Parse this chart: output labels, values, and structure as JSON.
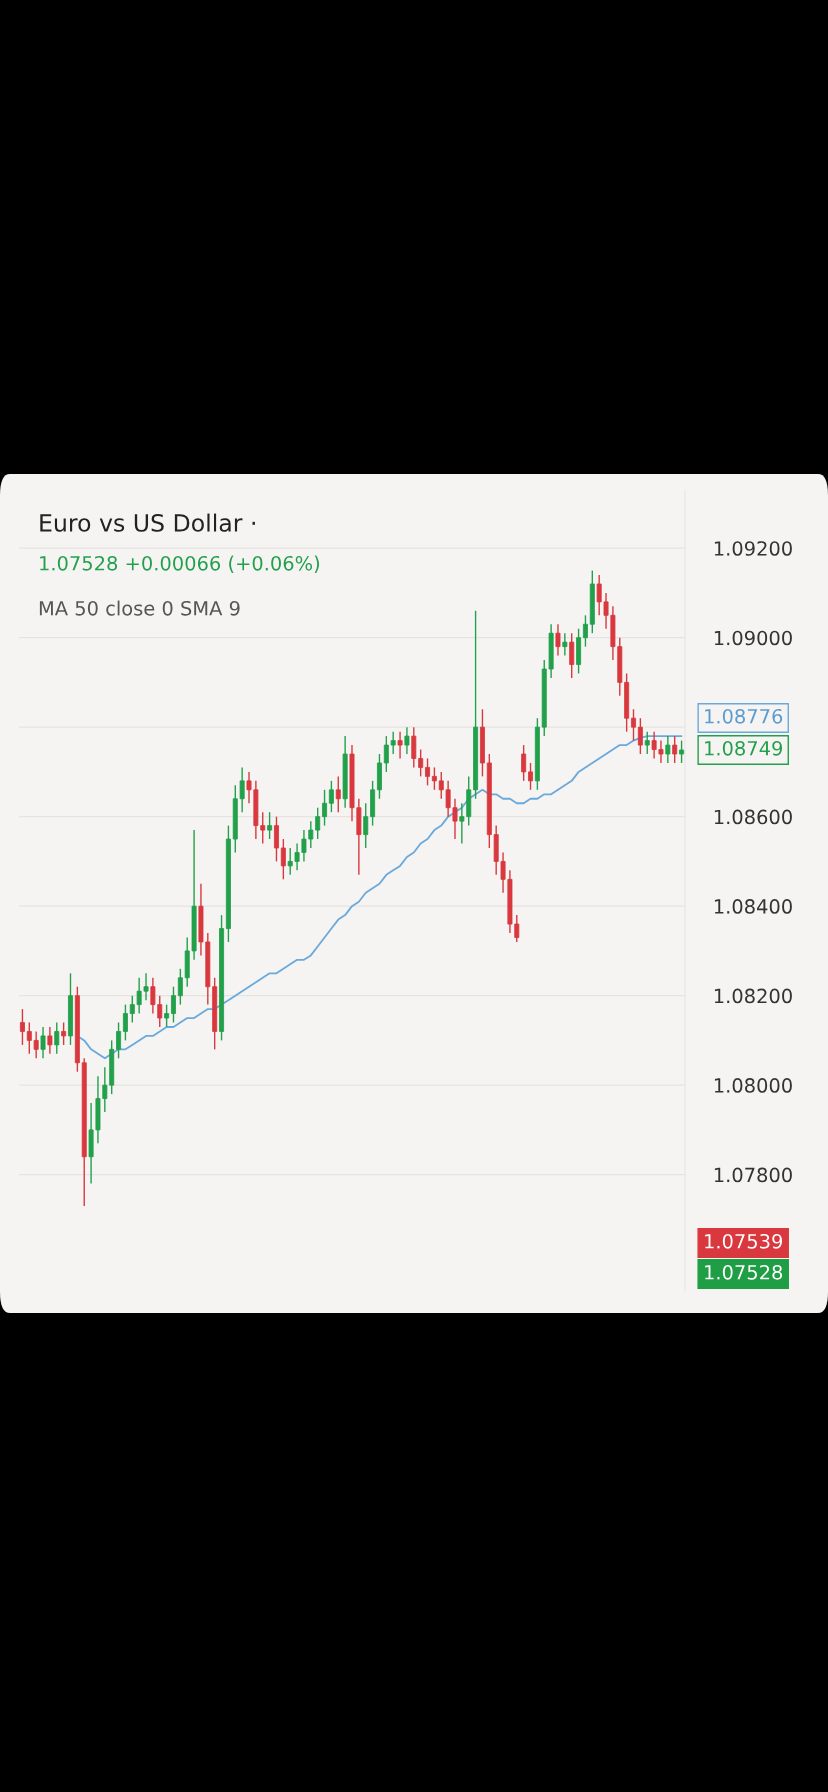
{
  "chart_data": {
    "type": "candlestick",
    "title": "Euro vs US Dollar ·",
    "subtitle": "1.07528 +0.00066 (+0.06%)",
    "annotations": [
      "MA 50 close 0 SMA 9",
      "1.08776",
      "1.08749",
      "1.07539",
      "1.07528"
    ],
    "categories": [
      null,
      null,
      null,
      null,
      null,
      null,
      null,
      null,
      null,
      null,
      null,
      null,
      null,
      null,
      null,
      null,
      null,
      null,
      null,
      null,
      null,
      null,
      null,
      null,
      null,
      null,
      null,
      null,
      null,
      null,
      null,
      null,
      null,
      null,
      null,
      null,
      null,
      null,
      null,
      null,
      null,
      null,
      null,
      null,
      null,
      null,
      null,
      null,
      null,
      null,
      null,
      null,
      null,
      null,
      null,
      null,
      null,
      null,
      null,
      null,
      null,
      null,
      null,
      null,
      null,
      null,
      null,
      null,
      null,
      null,
      null,
      null,
      null,
      null,
      null,
      null,
      null,
      null,
      null,
      null,
      null,
      null,
      null,
      null,
      null,
      null,
      null,
      null,
      null,
      null,
      null,
      null,
      null,
      null,
      null,
      null,
      null
    ],
    "ohlc": [
      [
        1.0814,
        1.0817,
        1.0809,
        1.0812
      ],
      [
        1.0812,
        1.0814,
        1.0807,
        1.081
      ],
      [
        1.081,
        1.0812,
        1.0806,
        1.0808
      ],
      [
        1.0808,
        1.0813,
        1.0806,
        1.0811
      ],
      [
        1.0811,
        1.0813,
        1.0807,
        1.0809
      ],
      [
        1.0809,
        1.0814,
        1.0807,
        1.0812
      ],
      [
        1.0812,
        1.0814,
        1.0809,
        1.0811
      ],
      [
        1.0811,
        1.0825,
        1.0809,
        1.082
      ],
      [
        1.082,
        1.0822,
        1.0803,
        1.0805
      ],
      [
        1.0805,
        1.0806,
        1.0773,
        1.0784
      ],
      [
        1.0784,
        1.0796,
        1.0778,
        1.079
      ],
      [
        1.079,
        1.0802,
        1.0787,
        1.0797
      ],
      [
        1.0797,
        1.0804,
        1.0794,
        1.08
      ],
      [
        1.08,
        1.081,
        1.0798,
        1.0808
      ],
      [
        1.0808,
        1.0814,
        1.0806,
        1.0812
      ],
      [
        1.0812,
        1.0818,
        1.081,
        1.0816
      ],
      [
        1.0816,
        1.082,
        1.0814,
        1.0818
      ],
      [
        1.0818,
        1.0824,
        1.0816,
        1.0821
      ],
      [
        1.0821,
        1.0825,
        1.0819,
        1.0822
      ],
      [
        1.0822,
        1.0824,
        1.0816,
        1.0818
      ],
      [
        1.0818,
        1.082,
        1.0813,
        1.0815
      ],
      [
        1.0815,
        1.0818,
        1.0813,
        1.0816
      ],
      [
        1.0816,
        1.0822,
        1.0814,
        1.082
      ],
      [
        1.082,
        1.0826,
        1.0818,
        1.0824
      ],
      [
        1.0824,
        1.0833,
        1.0822,
        1.083
      ],
      [
        1.083,
        1.0857,
        1.0828,
        1.084
      ],
      [
        1.084,
        1.0845,
        1.0829,
        1.0832
      ],
      [
        1.0832,
        1.0834,
        1.0818,
        1.0822
      ],
      [
        1.0822,
        1.0824,
        1.0808,
        1.0812
      ],
      [
        1.0812,
        1.0838,
        1.081,
        1.0835
      ],
      [
        1.0835,
        1.0858,
        1.0832,
        1.0855
      ],
      [
        1.0855,
        1.0867,
        1.0852,
        1.0864
      ],
      [
        1.0864,
        1.0871,
        1.0861,
        1.0868
      ],
      [
        1.0868,
        1.087,
        1.0863,
        1.0866
      ],
      [
        1.0866,
        1.0868,
        1.0855,
        1.0858
      ],
      [
        1.0858,
        1.0861,
        1.0854,
        1.0857
      ],
      [
        1.0857,
        1.0861,
        1.0855,
        1.0858
      ],
      [
        1.0858,
        1.086,
        1.085,
        1.0853
      ],
      [
        1.0853,
        1.0855,
        1.0846,
        1.0849
      ],
      [
        1.0849,
        1.0853,
        1.0847,
        1.085
      ],
      [
        1.085,
        1.0854,
        1.0848,
        1.0852
      ],
      [
        1.0852,
        1.0857,
        1.085,
        1.0855
      ],
      [
        1.0855,
        1.0859,
        1.0853,
        1.0857
      ],
      [
        1.0857,
        1.0862,
        1.0855,
        1.086
      ],
      [
        1.086,
        1.0866,
        1.0858,
        1.0863
      ],
      [
        1.0863,
        1.0868,
        1.0861,
        1.0866
      ],
      [
        1.0866,
        1.0869,
        1.0861,
        1.0864
      ],
      [
        1.0864,
        1.0878,
        1.0862,
        1.0874
      ],
      [
        1.0874,
        1.0876,
        1.0859,
        1.0862
      ],
      [
        1.0862,
        1.0864,
        1.0847,
        1.0856
      ],
      [
        1.0856,
        1.0863,
        1.0853,
        1.086
      ],
      [
        1.086,
        1.0868,
        1.0858,
        1.0866
      ],
      [
        1.0866,
        1.0874,
        1.0864,
        1.0872
      ],
      [
        1.0872,
        1.0878,
        1.087,
        1.0876
      ],
      [
        1.0876,
        1.0879,
        1.0874,
        1.0877
      ],
      [
        1.0877,
        1.0879,
        1.0873,
        1.0876
      ],
      [
        1.0876,
        1.088,
        1.0874,
        1.0878
      ],
      [
        1.0878,
        1.088,
        1.0871,
        1.0873
      ],
      [
        1.0873,
        1.0875,
        1.0869,
        1.0871
      ],
      [
        1.0871,
        1.0873,
        1.0867,
        1.0869
      ],
      [
        1.0869,
        1.0871,
        1.0866,
        1.0868
      ],
      [
        1.0868,
        1.087,
        1.0864,
        1.0866
      ],
      [
        1.0866,
        1.0868,
        1.086,
        1.0862
      ],
      [
        1.0862,
        1.0864,
        1.0855,
        1.0859
      ],
      [
        1.0859,
        1.0863,
        1.0854,
        1.086
      ],
      [
        1.086,
        1.0869,
        1.0858,
        1.0866
      ],
      [
        1.0866,
        1.0906,
        1.0864,
        1.088
      ],
      [
        1.088,
        1.0884,
        1.0869,
        1.0872
      ],
      [
        1.0872,
        1.0874,
        1.0853,
        1.0856
      ],
      [
        1.0856,
        1.0858,
        1.0847,
        1.085
      ],
      [
        1.085,
        1.0852,
        1.0843,
        1.0846
      ],
      [
        1.0846,
        1.0848,
        1.0834,
        1.0836
      ],
      [
        1.0836,
        1.0838,
        1.0832,
        1.0833
      ],
      [
        1.0874,
        1.0876,
        1.0868,
        1.087
      ],
      [
        1.087,
        1.0872,
        1.0866,
        1.0868
      ],
      [
        1.0868,
        1.0882,
        1.0866,
        1.088
      ],
      [
        1.088,
        1.0895,
        1.0878,
        1.0893
      ],
      [
        1.0893,
        1.0903,
        1.0891,
        1.0901
      ],
      [
        1.0901,
        1.0903,
        1.0896,
        1.0898
      ],
      [
        1.0898,
        1.0901,
        1.0896,
        1.0899
      ],
      [
        1.0899,
        1.0901,
        1.0891,
        1.0894
      ],
      [
        1.0894,
        1.0902,
        1.0892,
        1.09
      ],
      [
        1.09,
        1.0905,
        1.0898,
        1.0903
      ],
      [
        1.0903,
        1.0915,
        1.0901,
        1.0912
      ],
      [
        1.0912,
        1.0914,
        1.0905,
        1.0908
      ],
      [
        1.0908,
        1.091,
        1.0902,
        1.0905
      ],
      [
        1.0905,
        1.0907,
        1.0895,
        1.0898
      ],
      [
        1.0898,
        1.09,
        1.0887,
        1.089
      ],
      [
        1.089,
        1.0892,
        1.0879,
        1.0882
      ],
      [
        1.0882,
        1.0884,
        1.0877,
        1.088
      ],
      [
        1.088,
        1.0882,
        1.0874,
        1.0876
      ],
      [
        1.0876,
        1.0879,
        1.0874,
        1.0877
      ],
      [
        1.0877,
        1.0879,
        1.0873,
        1.0875
      ],
      [
        1.0875,
        1.0877,
        1.0872,
        1.0874
      ],
      [
        1.0874,
        1.0878,
        1.0872,
        1.0876
      ],
      [
        1.0876,
        1.0878,
        1.0872,
        1.0874
      ],
      [
        1.0874,
        1.0877,
        1.0872,
        1.08749
      ]
    ],
    "series": [
      {
        "type": "line",
        "color": "#6aa9dc",
        "values": [
          null,
          null,
          null,
          null,
          null,
          null,
          null,
          null,
          1.0811,
          1.081,
          1.0808,
          1.0807,
          1.0806,
          1.0807,
          1.0808,
          1.0808,
          1.0809,
          1.081,
          1.0811,
          1.0811,
          1.0812,
          1.0813,
          1.0813,
          1.0814,
          1.0815,
          1.0815,
          1.0816,
          1.0817,
          1.0817,
          1.0818,
          1.0819,
          1.082,
          1.0821,
          1.0822,
          1.0823,
          1.0824,
          1.0825,
          1.0825,
          1.0826,
          1.0827,
          1.0828,
          1.0828,
          1.0829,
          1.0831,
          1.0833,
          1.0835,
          1.0837,
          1.0838,
          1.084,
          1.0841,
          1.0843,
          1.0844,
          1.0845,
          1.0847,
          1.0848,
          1.0849,
          1.0851,
          1.0852,
          1.0854,
          1.0855,
          1.0857,
          1.0858,
          1.086,
          1.0861,
          1.0862,
          1.0864,
          1.0865,
          1.0866,
          1.0865,
          1.0865,
          1.0864,
          1.0864,
          1.0863,
          1.0863,
          1.0864,
          1.0864,
          1.0865,
          1.0865,
          1.0866,
          1.0867,
          1.0868,
          1.087,
          1.0871,
          1.0872,
          1.0873,
          1.0874,
          1.0875,
          1.0876,
          1.0876,
          1.0877,
          1.08776,
          1.0878,
          1.0878,
          1.0878,
          1.0878,
          1.0878,
          1.0878
        ]
      }
    ],
    "ylim": [
      1.0754,
      1.0933
    ],
    "yticks": [
      {
        "value": 1.078,
        "label": "1.07800"
      },
      {
        "value": 1.08,
        "label": "1.08000"
      },
      {
        "value": 1.082,
        "label": "1.08200"
      },
      {
        "value": 1.084,
        "label": "1.08400"
      },
      {
        "value": 1.086,
        "label": "1.08600"
      },
      {
        "value": 1.088,
        "label": null
      },
      {
        "value": 1.09,
        "label": "1.09000"
      },
      {
        "value": 1.092,
        "label": "1.09200"
      }
    ],
    "grid": "y",
    "tick_labels": "y"
  }
}
